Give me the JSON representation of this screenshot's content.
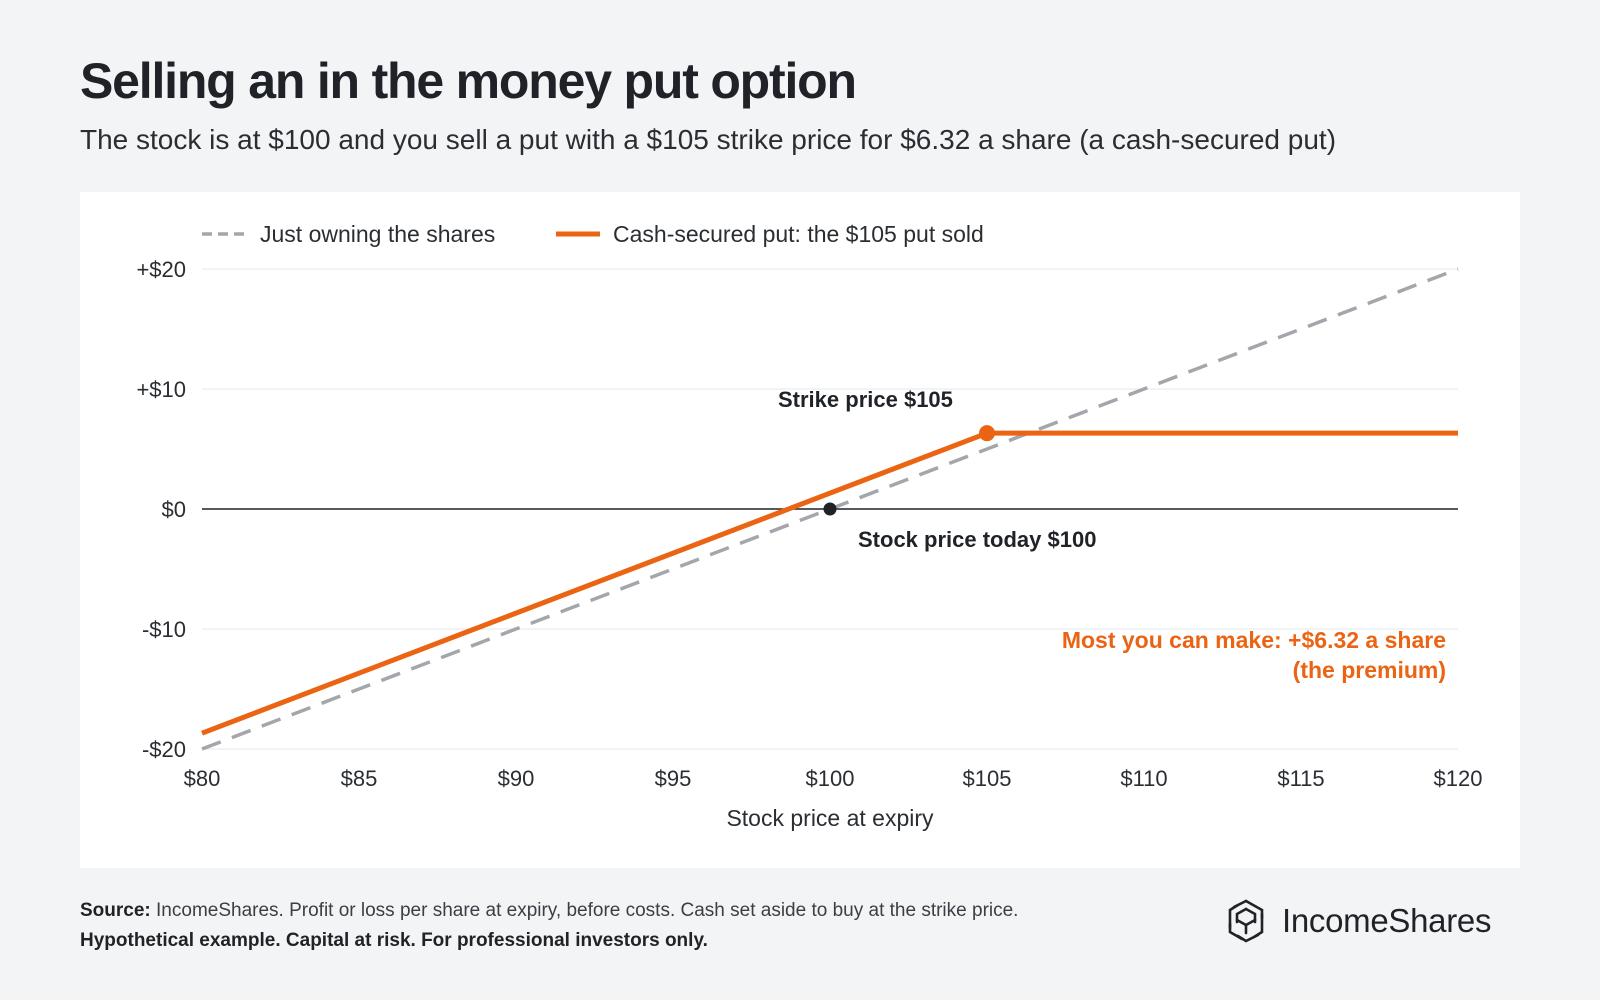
{
  "header": {
    "title": "Selling an in the money put option",
    "subtitle": "The stock is at $100 and you sell a put with a $105 strike price for $6.32 a share (a cash-secured put)"
  },
  "chart_data": {
    "type": "line",
    "xlabel": "Stock price at expiry",
    "ylabel": "",
    "xlim": [
      80,
      120
    ],
    "ylim": [
      -20,
      20
    ],
    "x_ticks": [
      {
        "value": 80,
        "label": "$80"
      },
      {
        "value": 85,
        "label": "$85"
      },
      {
        "value": 90,
        "label": "$90"
      },
      {
        "value": 95,
        "label": "$95"
      },
      {
        "value": 100,
        "label": "$100"
      },
      {
        "value": 105,
        "label": "$105"
      },
      {
        "value": 110,
        "label": "$110"
      },
      {
        "value": 115,
        "label": "$115"
      },
      {
        "value": 120,
        "label": "$120"
      }
    ],
    "y_ticks": [
      {
        "value": 20,
        "label": "+$20"
      },
      {
        "value": 10,
        "label": "+$10"
      },
      {
        "value": 0,
        "label": "$0"
      },
      {
        "value": -10,
        "label": "-$10"
      },
      {
        "value": -20,
        "label": "-$20"
      }
    ],
    "grid": true,
    "legend_position": "top-left",
    "series": [
      {
        "name": "Just owning the shares",
        "color": "#a3a6ab",
        "style": "dashed",
        "points": [
          [
            80,
            -20
          ],
          [
            120,
            20
          ]
        ]
      },
      {
        "name": "Cash-secured put: the $105 put sold",
        "color": "#eb6413",
        "style": "solid",
        "points": [
          [
            80,
            -18.68
          ],
          [
            105,
            6.32
          ],
          [
            120,
            6.32
          ]
        ]
      }
    ],
    "markers": [
      {
        "x": 100,
        "y": 0,
        "color": "#1f2328",
        "label": "Stock price today $100"
      },
      {
        "x": 105,
        "y": 6.32,
        "color": "#eb6413",
        "label": "Strike price $105"
      }
    ],
    "annotations": [
      {
        "text": "Most you can make: +$6.32 a share",
        "color": "#eb6413"
      },
      {
        "text": "(the premium)",
        "color": "#eb6413"
      }
    ]
  },
  "footer": {
    "source_label": "Source:",
    "source_text": " IncomeShares. Profit or loss per share at expiry, before costs. Cash set aside to buy at the strike price. ",
    "disclaimer": "Hypothetical example. Capital at risk. For professional investors only."
  },
  "brand": {
    "name": "IncomeShares",
    "logo_icon": "incomeshares-logo-icon"
  }
}
